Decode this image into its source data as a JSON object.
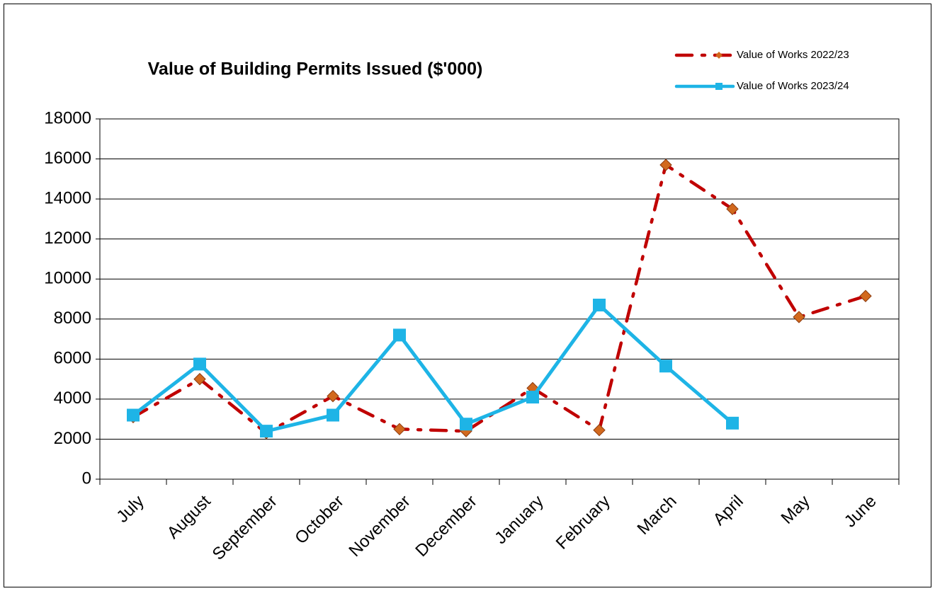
{
  "chart_data": {
    "type": "line",
    "title": "Value of Building Permits Issued ($'000)",
    "categories": [
      "July",
      "August",
      "September",
      "October",
      "November",
      "December",
      "January",
      "February",
      "March",
      "April",
      "May",
      "June"
    ],
    "series": [
      {
        "name": "Value of Works 2022/23",
        "color": "#c00000",
        "marker_color": "#d2691e",
        "marker": "diamond",
        "dash": "dashdot",
        "values": [
          3100,
          5000,
          2300,
          4150,
          2500,
          2400,
          4550,
          2450,
          15700,
          13500,
          8100,
          9150
        ]
      },
      {
        "name": "Value of Works 2023/24",
        "color": "#1eb4e6",
        "marker_color": "#1eb4e6",
        "marker": "square",
        "dash": "solid",
        "values": [
          3200,
          5750,
          2400,
          3200,
          7200,
          2750,
          4100,
          8700,
          5650,
          2800,
          null,
          null
        ]
      }
    ],
    "ylim": [
      0,
      18000
    ],
    "yticks": [
      0,
      2000,
      4000,
      6000,
      8000,
      10000,
      12000,
      14000,
      16000,
      18000
    ],
    "grid": true,
    "legend": "top-right"
  }
}
